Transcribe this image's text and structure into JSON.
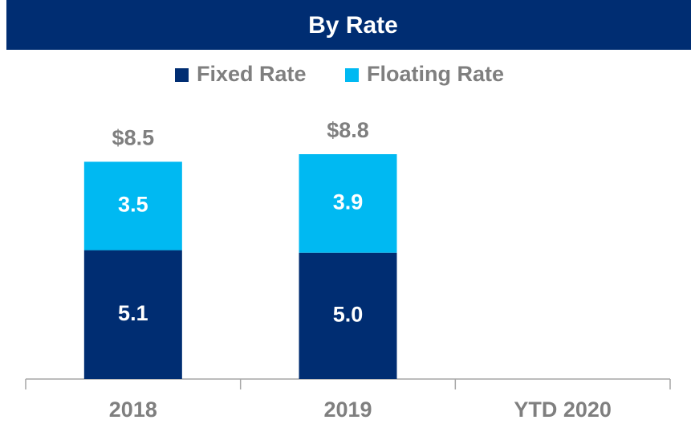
{
  "chart_data": {
    "type": "stacked_bar",
    "title": "By Rate",
    "categories": [
      "2018",
      "2019",
      "YTD 2020"
    ],
    "series": [
      {
        "name": "Fixed Rate",
        "color": "#002d72",
        "values": [
          5.1,
          5.0,
          null
        ],
        "value_labels": [
          "5.1",
          "5.0",
          null
        ]
      },
      {
        "name": "Floating Rate",
        "color": "#00b9f2",
        "values": [
          3.5,
          3.9,
          null
        ],
        "value_labels": [
          "3.5",
          "3.9",
          null
        ]
      }
    ],
    "totals": {
      "values": [
        8.5,
        8.8,
        null
      ],
      "value_labels": [
        "$8.5",
        "$8.8",
        null
      ]
    }
  }
}
